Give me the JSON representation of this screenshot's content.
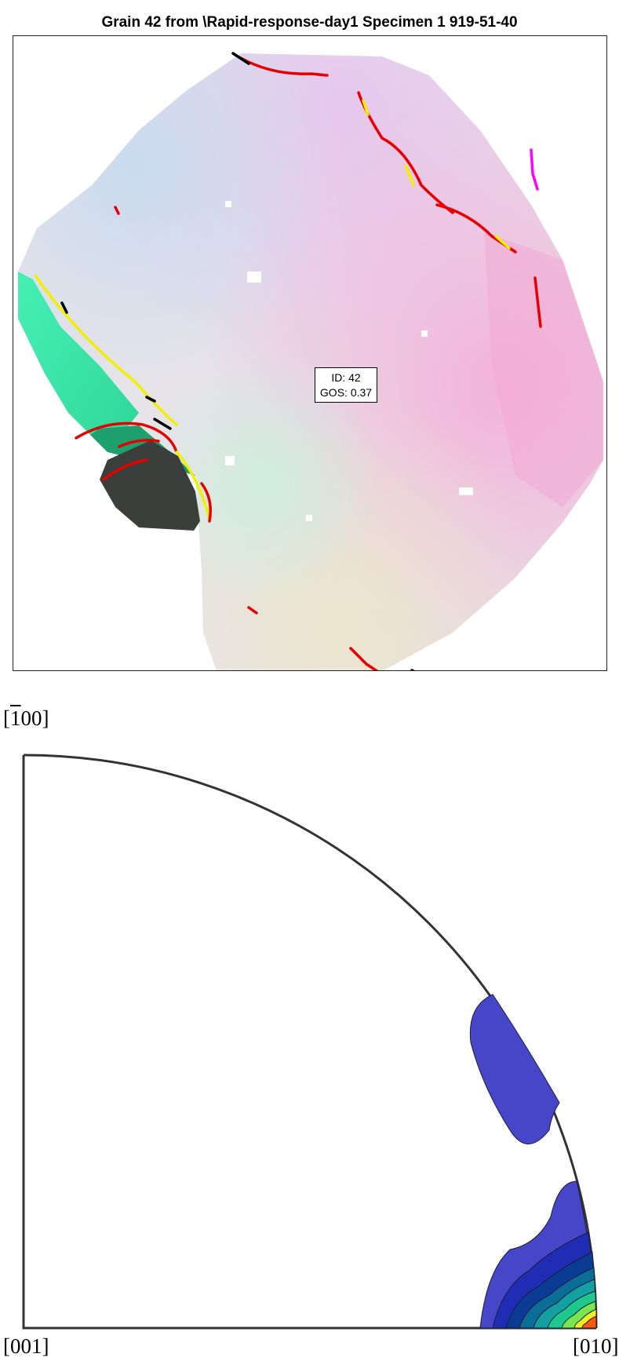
{
  "figure": {
    "title": "Grain 42 from \\Rapid-response-day1 Specimen 1 919-51-40",
    "grain_label": {
      "id_text": "ID: 42",
      "gos_text": "GOS: 0.37"
    }
  },
  "pole_figure": {
    "labels": {
      "top": "[100]",
      "bottom_left": "[001]",
      "bottom_right": "[010]"
    },
    "contour_colors": [
      "#4646c8",
      "#1e2db4",
      "#0a3c96",
      "#0a6e96",
      "#14a0a0",
      "#1ec88c",
      "#78e650",
      "#f0f01e",
      "#ff5a0a"
    ]
  },
  "colors": {
    "boundary_high": "#e60000",
    "boundary_low": "#f0f000",
    "boundary_other": "#000000",
    "twin": "#ff00ff",
    "dark_grain": "#3a3f3c"
  }
}
